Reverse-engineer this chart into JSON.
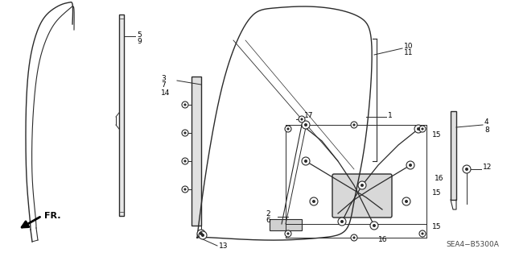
{
  "bg_color": "#ffffff",
  "diagram_code": "SEA4−B5300A",
  "line_color": "#2a2a2a",
  "label_color": "#000000",
  "label_fs": 6.5,
  "fig_w": 6.4,
  "fig_h": 3.19,
  "dpi": 100
}
